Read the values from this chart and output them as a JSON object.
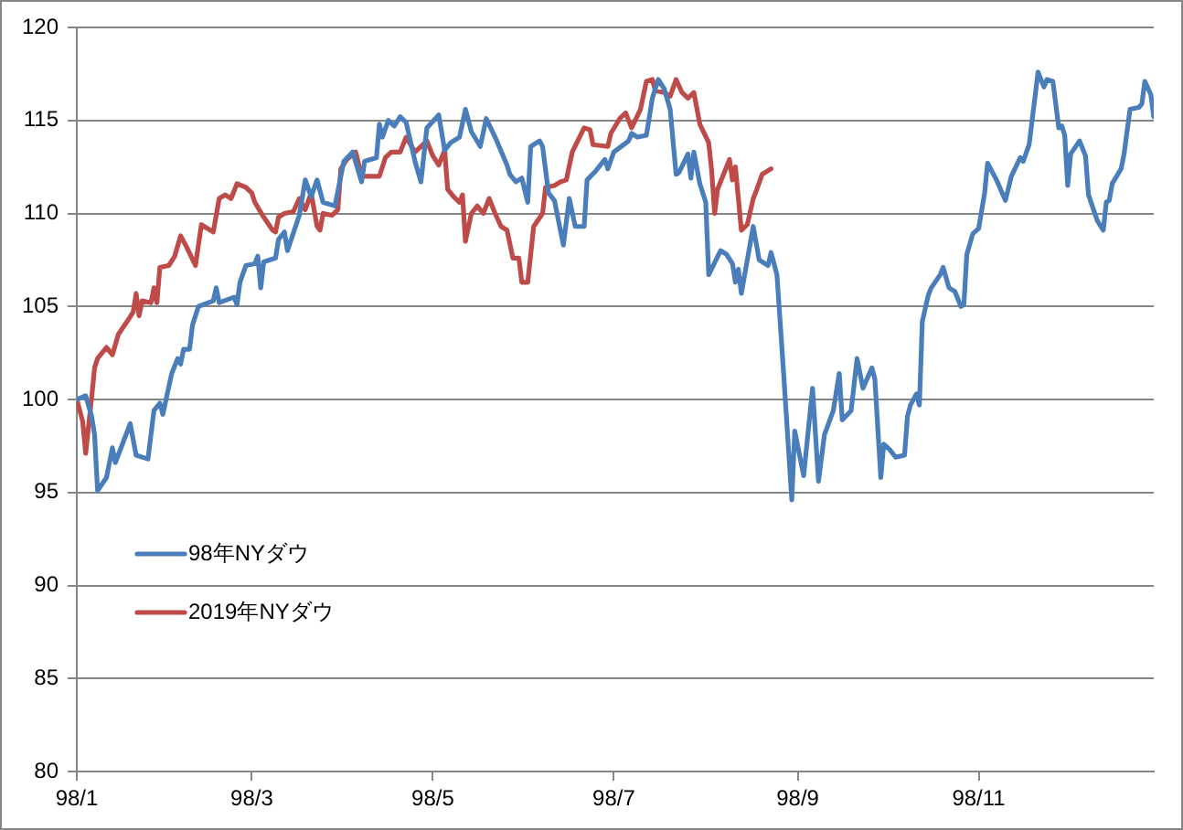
{
  "chart_data": {
    "type": "line",
    "xlim": [
      "--01-02",
      "--12-31"
    ],
    "xticks": [
      {
        "value": "--01-02",
        "label": "98/1"
      },
      {
        "value": "--03-02",
        "label": "98/3"
      },
      {
        "value": "--05-02",
        "label": "98/5"
      },
      {
        "value": "--07-02",
        "label": "98/7"
      },
      {
        "value": "--09-02",
        "label": "98/9"
      },
      {
        "value": "--11-02",
        "label": "98/11"
      }
    ],
    "ylim": [
      80,
      120
    ],
    "yticks": [
      80,
      85,
      90,
      95,
      100,
      105,
      110,
      115,
      120
    ],
    "grid": "y",
    "legend": "bottom left",
    "series": [
      {
        "name": "98年NYダウ",
        "color": "#4a7ebb",
        "x": [
          "--01-02",
          "--01-05",
          "--01-07",
          "--01-08",
          "--01-09",
          "--01-12",
          "--01-14",
          "--01-15",
          "--01-20",
          "--01-22",
          "--01-26",
          "--01-28",
          "--01-30",
          "--01-31",
          "--02-03",
          "--02-05",
          "--02-06",
          "--02-07",
          "--02-09",
          "--02-10",
          "--02-12",
          "--02-17",
          "--02-18",
          "--02-19",
          "--02-24",
          "--02-25",
          "--02-26",
          "--02-28",
          "--03-03",
          "--03-04",
          "--03-05",
          "--03-06",
          "--03-10",
          "--03-11",
          "--03-13",
          "--03-14",
          "--03-18",
          "--03-20",
          "--03-22",
          "--03-24",
          "--03-26",
          "--03-30",
          "--04-02",
          "--04-05",
          "--04-08",
          "--04-09",
          "--04-13",
          "--04-14",
          "--04-15",
          "--04-17",
          "--04-19",
          "--04-21",
          "--04-23",
          "--04-26",
          "--04-28",
          "--04-30",
          "--05-04",
          "--05-06",
          "--05-08",
          "--05-11",
          "--05-13",
          "--05-15",
          "--05-18",
          "--05-20",
          "--05-23",
          "--05-27",
          "--05-28",
          "--05-30",
          "--06-01",
          "--06-03",
          "--06-04",
          "--06-07",
          "--06-08",
          "--06-10",
          "--06-12",
          "--06-15",
          "--06-17",
          "--06-19",
          "--06-22",
          "--06-23",
          "--06-26",
          "--06-29",
          "--06-30",
          "--07-02",
          "--07-07",
          "--07-08",
          "--07-10",
          "--07-13",
          "--07-15",
          "--07-17",
          "--07-19",
          "--07-21",
          "--07-23",
          "--07-24",
          "--07-27",
          "--07-28",
          "--07-29",
          "--07-31",
          "--08-02",
          "--08-03",
          "--08-07",
          "--08-09",
          "--08-11",
          "--08-12",
          "--08-13",
          "--08-14",
          "--08-16",
          "--08-18",
          "--08-20",
          "--08-23",
          "--08-24",
          "--08-26",
          "--08-28",
          "--08-31",
          "--09-01",
          "--09-04",
          "--09-07",
          "--09-09",
          "--09-11",
          "--09-14",
          "--09-16",
          "--09-17",
          "--09-20",
          "--09-22",
          "--09-24",
          "--09-27",
          "--09-28",
          "--09-30",
          "--10-01",
          "--10-03",
          "--10-05",
          "--10-08",
          "--10-09",
          "--10-10",
          "--10-12",
          "--10-13",
          "--10-14",
          "--10-16",
          "--10-17",
          "--10-20",
          "--10-21",
          "--10-23",
          "--10-25",
          "--10-27",
          "--10-28",
          "--10-29",
          "--10-31",
          "--11-02",
          "--11-04",
          "--11-05",
          "--11-08",
          "--11-11",
          "--11-13",
          "--11-16",
          "--11-17",
          "--11-19",
          "--11-20",
          "--11-22",
          "--11-24",
          "--11-25",
          "--11-27",
          "--11-29",
          "--11-30",
          "--12-01",
          "--12-02",
          "--12-03",
          "--12-06",
          "--12-08",
          "--12-09",
          "--12-12",
          "--12-14",
          "--12-15",
          "--12-16",
          "--12-17",
          "--12-20",
          "--12-21",
          "--12-23",
          "--12-26",
          "--12-27",
          "--12-28",
          "--12-30",
          "--12-31"
        ],
        "values": [
          100.0,
          100.2,
          99.1,
          98.1,
          95.1,
          95.8,
          97.4,
          96.6,
          98.7,
          97.0,
          96.8,
          99.4,
          99.8,
          99.2,
          101.4,
          102.2,
          101.9,
          102.7,
          102.7,
          104.0,
          105.0,
          105.3,
          106.0,
          105.2,
          105.5,
          105.1,
          106.3,
          107.2,
          107.3,
          107.7,
          106.0,
          107.4,
          107.6,
          108.6,
          109.0,
          108.0,
          109.9,
          111.8,
          110.9,
          111.8,
          110.6,
          110.4,
          112.8,
          113.3,
          111.7,
          112.8,
          113.0,
          114.8,
          114.1,
          115.0,
          114.7,
          115.2,
          114.9,
          112.8,
          111.7,
          114.6,
          115.3,
          113.4,
          113.8,
          114.1,
          115.6,
          114.4,
          113.6,
          115.1,
          114.1,
          112.6,
          112.1,
          111.7,
          111.9,
          110.6,
          113.6,
          113.9,
          113.6,
          111.1,
          110.7,
          108.3,
          110.8,
          109.3,
          109.3,
          111.8,
          112.3,
          112.9,
          112.4,
          113.3,
          113.9,
          114.3,
          114.1,
          114.2,
          116.2,
          117.2,
          116.7,
          115.6,
          112.1,
          112.2,
          113.2,
          111.9,
          113.3,
          111.6,
          110.6,
          106.7,
          108.0,
          107.8,
          107.3,
          106.3,
          107.0,
          105.7,
          107.5,
          109.3,
          107.5,
          107.2,
          107.9,
          106.7,
          102.0,
          94.6,
          98.3,
          95.9,
          100.6,
          95.6,
          98.1,
          99.4,
          101.4,
          98.9,
          99.4,
          102.2,
          100.6,
          101.7,
          101.1,
          95.8,
          97.6,
          97.3,
          96.9,
          97.0,
          99.1,
          99.7,
          100.3,
          99.7,
          104.2,
          105.6,
          106.0,
          106.7,
          107.1,
          106.0,
          105.8,
          105.0,
          105.1,
          107.8,
          108.9,
          109.2,
          111.1,
          112.7,
          111.8,
          110.7,
          112.0,
          113.0,
          112.8,
          113.7,
          115.0,
          117.6,
          116.8,
          117.2,
          117.1,
          114.6,
          114.7,
          114.2,
          111.5,
          113.2,
          113.9,
          113.1,
          111.0,
          109.6,
          109.1,
          110.6,
          110.7,
          111.6,
          112.4,
          113.2,
          115.6,
          115.7,
          115.9,
          117.1,
          116.4,
          115.2
        ]
      },
      {
        "name": "2019年NYダウ",
        "color": "#be4b48",
        "x": [
          "--01-02",
          "--01-04",
          "--01-05",
          "--01-07",
          "--01-08",
          "--01-09",
          "--01-12",
          "--01-14",
          "--01-16",
          "--01-19",
          "--01-21",
          "--01-22",
          "--01-23",
          "--01-24",
          "--01-27",
          "--01-28",
          "--01-29",
          "--01-30",
          "--02-02",
          "--02-04",
          "--02-06",
          "--02-08",
          "--02-11",
          "--02-13",
          "--02-17",
          "--02-19",
          "--02-21",
          "--02-23",
          "--02-25",
          "--02-28",
          "--03-02",
          "--03-03",
          "--03-06",
          "--03-09",
          "--03-10",
          "--03-11",
          "--03-13",
          "--03-16",
          "--03-18",
          "--03-20",
          "--03-22",
          "--03-24",
          "--03-25",
          "--03-26",
          "--03-29",
          "--03-31",
          "--04-01",
          "--04-03",
          "--04-06",
          "--04-08",
          "--04-14",
          "--04-16",
          "--04-18",
          "--04-21",
          "--04-23",
          "--04-26",
          "--04-30",
          "--05-02",
          "--05-04",
          "--05-06",
          "--05-07",
          "--05-09",
          "--05-11",
          "--05-12",
          "--05-13",
          "--05-15",
          "--05-17",
          "--05-19",
          "--05-21",
          "--05-23",
          "--05-25",
          "--05-27",
          "--05-29",
          "--05-31",
          "--06-01",
          "--06-03",
          "--06-05",
          "--06-08",
          "--06-09",
          "--06-12",
          "--06-14",
          "--06-16",
          "--06-18",
          "--06-22",
          "--06-24",
          "--06-25",
          "--06-30",
          "--07-01",
          "--07-04",
          "--07-06",
          "--07-08",
          "--07-11",
          "--07-13",
          "--07-15",
          "--07-16",
          "--07-19",
          "--07-21",
          "--07-23",
          "--07-25",
          "--07-27",
          "--07-29",
          "--07-31",
          "--08-03",
          "--08-04",
          "--08-05",
          "--08-06",
          "--08-10",
          "--08-11",
          "--08-12",
          "--08-13",
          "--08-14",
          "--08-16",
          "--08-18",
          "--08-19",
          "--08-21",
          "--08-24"
        ],
        "values": [
          100.0,
          98.8,
          97.1,
          100.1,
          101.7,
          102.2,
          102.8,
          102.4,
          103.5,
          104.2,
          104.7,
          105.7,
          104.5,
          105.3,
          105.2,
          106.0,
          105.2,
          107.1,
          107.2,
          107.7,
          108.8,
          108.2,
          107.2,
          109.4,
          109.0,
          110.8,
          111.0,
          110.8,
          111.6,
          111.4,
          111.1,
          110.6,
          109.8,
          109.1,
          109.0,
          109.8,
          110.0,
          110.1,
          110.8,
          110.2,
          111.1,
          109.3,
          109.1,
          110.0,
          109.9,
          110.2,
          112.4,
          112.9,
          113.3,
          112.0,
          112.0,
          113.0,
          113.3,
          113.3,
          114.1,
          113.3,
          113.9,
          113.1,
          112.6,
          113.4,
          111.3,
          110.9,
          110.6,
          111.0,
          108.5,
          110.0,
          110.4,
          110.0,
          110.8,
          110.0,
          109.3,
          109.1,
          107.6,
          107.6,
          106.3,
          106.3,
          109.3,
          110.0,
          111.4,
          111.5,
          111.7,
          111.8,
          113.3,
          114.6,
          114.5,
          113.7,
          113.6,
          114.3,
          115.1,
          115.4,
          114.6,
          115.6,
          117.1,
          117.2,
          116.6,
          116.5,
          116.3,
          117.2,
          116.5,
          116.2,
          116.5,
          114.8,
          113.8,
          112.3,
          110.0,
          111.3,
          112.9,
          111.8,
          112.5,
          110.8,
          109.1,
          109.4,
          110.8,
          111.2,
          112.1,
          112.4
        ]
      }
    ]
  }
}
